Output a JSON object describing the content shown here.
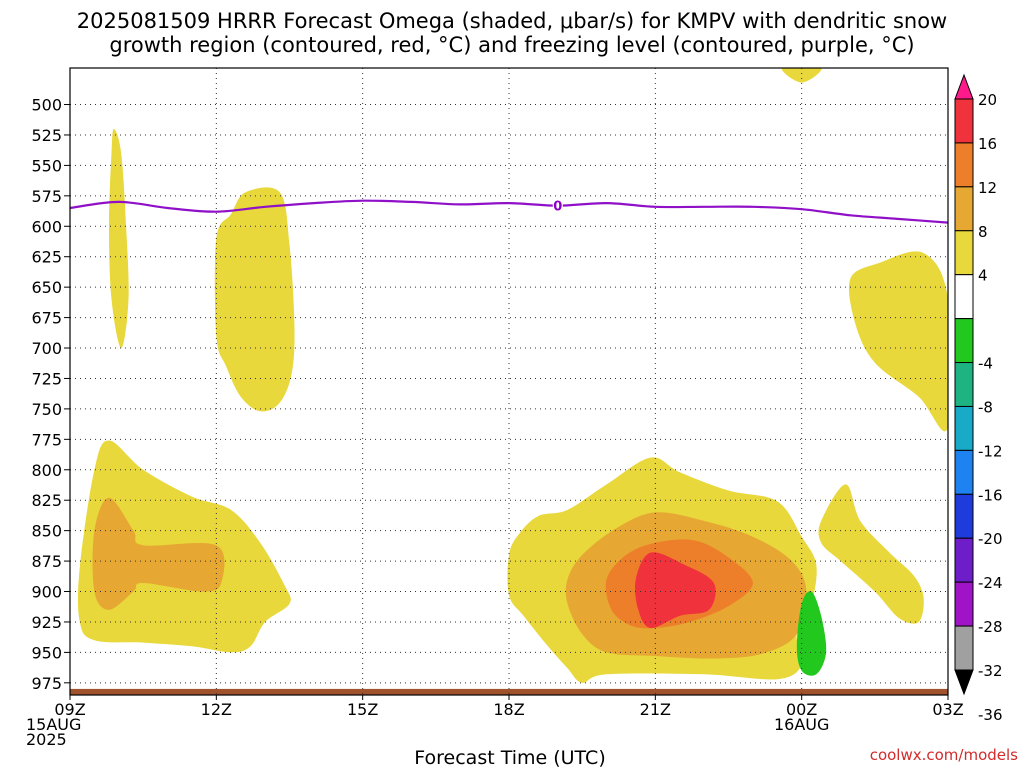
{
  "chart_data": {
    "type": "area",
    "title_lines": [
      "2025081509 HRRR Forecast Omega (shaded, μbar/s) for KMPV with dendritic snow",
      "growth region (contoured, red, °C) and freezing level (contoured, purple, °C)"
    ],
    "xlabel": "Forecast Time (UTC)",
    "credit": "coolwx.com/models",
    "x_range_hours": [
      0,
      18
    ],
    "y_range_mb": [
      470,
      985
    ],
    "y_ticks": [
      500,
      525,
      550,
      575,
      600,
      625,
      650,
      675,
      700,
      725,
      750,
      775,
      800,
      825,
      850,
      875,
      900,
      925,
      950,
      975
    ],
    "x_ticks": [
      {
        "hour": 0,
        "lines": [
          "09Z",
          "15AUG",
          "2025"
        ]
      },
      {
        "hour": 3,
        "lines": [
          "12Z"
        ]
      },
      {
        "hour": 6,
        "lines": [
          "15Z"
        ]
      },
      {
        "hour": 9,
        "lines": [
          "18Z"
        ]
      },
      {
        "hour": 12,
        "lines": [
          "21Z"
        ]
      },
      {
        "hour": 15,
        "lines": [
          "00Z",
          "16AUG"
        ]
      },
      {
        "hour": 18,
        "lines": [
          "03Z"
        ]
      }
    ],
    "colorbar": {
      "labels": [
        "20",
        "16",
        "12",
        "8",
        "4",
        "-4",
        "-8",
        "-12",
        "-16",
        "-20",
        "-24",
        "-28",
        "-32",
        "-36"
      ],
      "colors": [
        "#ff1a8c",
        "#f0323c",
        "#ee7f2a",
        "#e6a832",
        "#e8d83c",
        "#ffffff",
        "#23c81e",
        "#1eb482",
        "#19aac8",
        "#1e82f0",
        "#1e3cdc",
        "#6e1ec8",
        "#a014c8",
        "#a0a0a0",
        "#000000"
      ]
    },
    "freezing_level": {
      "label": "0",
      "color": "#9010c8",
      "hours": [
        0,
        1,
        2,
        3,
        4,
        5,
        6,
        7,
        8,
        9,
        10,
        11,
        12,
        13,
        14,
        15,
        16,
        17,
        18
      ],
      "pressure_mb": [
        585,
        580,
        585,
        588,
        584,
        581,
        579,
        580,
        582,
        581,
        583,
        581,
        584,
        584,
        584,
        586,
        591,
        594,
        597
      ]
    },
    "omega_regions": [
      {
        "level": 4,
        "color": "#e8d83c",
        "points": [
          [
            0.9,
            520
          ],
          [
            1.05,
            540
          ],
          [
            1.15,
            600
          ],
          [
            1.2,
            660
          ],
          [
            1.05,
            700
          ],
          [
            0.85,
            660
          ],
          [
            0.8,
            600
          ],
          [
            0.85,
            540
          ]
        ]
      },
      {
        "level": 4,
        "color": "#e8d83c",
        "points": [
          [
            3.0,
            610
          ],
          [
            3.3,
            590
          ],
          [
            3.6,
            572
          ],
          [
            4.3,
            572
          ],
          [
            4.5,
            615
          ],
          [
            4.6,
            680
          ],
          [
            4.55,
            720
          ],
          [
            4.3,
            745
          ],
          [
            3.9,
            752
          ],
          [
            3.5,
            740
          ],
          [
            3.2,
            715
          ],
          [
            3.0,
            690
          ]
        ]
      },
      {
        "level": 4,
        "color": "#e8d83c",
        "points": [
          [
            0.2,
            880
          ],
          [
            0.5,
            800
          ],
          [
            0.8,
            776
          ],
          [
            1.5,
            800
          ],
          [
            2.5,
            822
          ],
          [
            3.3,
            833
          ],
          [
            3.9,
            860
          ],
          [
            4.4,
            895
          ],
          [
            4.5,
            910
          ],
          [
            4.0,
            925
          ],
          [
            3.7,
            945
          ],
          [
            3.3,
            950
          ],
          [
            2.5,
            945
          ],
          [
            1.5,
            942
          ],
          [
            0.5,
            940
          ],
          [
            0.2,
            925
          ]
        ]
      },
      {
        "level": 8,
        "color": "#e6a832",
        "points": [
          [
            0.5,
            850
          ],
          [
            0.8,
            823
          ],
          [
            1.3,
            850
          ],
          [
            1.5,
            862
          ],
          [
            3.0,
            862
          ],
          [
            3.1,
            893
          ],
          [
            2.7,
            900
          ],
          [
            1.5,
            893
          ],
          [
            1.3,
            900
          ],
          [
            0.8,
            915
          ],
          [
            0.5,
            900
          ]
        ]
      },
      {
        "level": 4,
        "color": "#e8d83c",
        "points": [
          [
            9.0,
            870
          ],
          [
            9.2,
            853
          ],
          [
            9.6,
            838
          ],
          [
            10.2,
            833
          ],
          [
            11.0,
            812
          ],
          [
            11.9,
            790
          ],
          [
            12.5,
            802
          ],
          [
            13.5,
            817
          ],
          [
            14.5,
            826
          ],
          [
            15.0,
            855
          ],
          [
            15.3,
            878
          ],
          [
            15.2,
            910
          ],
          [
            14.9,
            935
          ],
          [
            15.0,
            960
          ],
          [
            14.5,
            972
          ],
          [
            13.0,
            968
          ],
          [
            11.0,
            968
          ],
          [
            10.5,
            975
          ],
          [
            10.2,
            963
          ],
          [
            9.8,
            945
          ],
          [
            9.3,
            920
          ],
          [
            9.0,
            903
          ]
        ]
      },
      {
        "level": 8,
        "color": "#e6a832",
        "points": [
          [
            10.2,
            890
          ],
          [
            10.5,
            870
          ],
          [
            11.2,
            848
          ],
          [
            12.0,
            835
          ],
          [
            13.0,
            842
          ],
          [
            14.0,
            855
          ],
          [
            14.8,
            875
          ],
          [
            15.1,
            900
          ],
          [
            14.9,
            935
          ],
          [
            14.2,
            951
          ],
          [
            13.2,
            955
          ],
          [
            12.0,
            953
          ],
          [
            11.0,
            950
          ],
          [
            10.5,
            935
          ],
          [
            10.2,
            910
          ]
        ]
      },
      {
        "level": 12,
        "color": "#ee7f2a",
        "points": [
          [
            11.0,
            890
          ],
          [
            11.4,
            870
          ],
          [
            12.0,
            860
          ],
          [
            12.8,
            858
          ],
          [
            13.5,
            872
          ],
          [
            14.0,
            893
          ],
          [
            13.5,
            912
          ],
          [
            12.7,
            925
          ],
          [
            12.0,
            930
          ],
          [
            11.5,
            928
          ],
          [
            11.1,
            915
          ]
        ]
      },
      {
        "level": 16,
        "color": "#f0323c",
        "points": [
          [
            11.6,
            890
          ],
          [
            11.9,
            868
          ],
          [
            12.6,
            878
          ],
          [
            13.2,
            893
          ],
          [
            13.1,
            915
          ],
          [
            12.5,
            920
          ],
          [
            11.9,
            930
          ],
          [
            11.65,
            915
          ]
        ]
      },
      {
        "level": -4,
        "color": "#23c81e",
        "points": [
          [
            15.0,
            910
          ],
          [
            15.2,
            900
          ],
          [
            15.4,
            920
          ],
          [
            15.5,
            950
          ],
          [
            15.3,
            968
          ],
          [
            15.0,
            965
          ],
          [
            14.9,
            945
          ]
        ]
      },
      {
        "level": 4,
        "color": "#e8d83c",
        "points": [
          [
            15.4,
            842
          ],
          [
            15.9,
            812
          ],
          [
            16.2,
            842
          ],
          [
            16.8,
            868
          ],
          [
            17.3,
            887
          ],
          [
            17.5,
            905
          ],
          [
            17.4,
            925
          ],
          [
            17.0,
            922
          ],
          [
            16.5,
            900
          ],
          [
            15.8,
            875
          ],
          [
            15.4,
            860
          ]
        ]
      },
      {
        "level": 4,
        "color": "#e8d83c",
        "points": [
          [
            16.0,
            643
          ],
          [
            16.6,
            630
          ],
          [
            17.5,
            622
          ],
          [
            18.0,
            660
          ],
          [
            18.0,
            765
          ],
          [
            17.4,
            740
          ],
          [
            16.5,
            712
          ],
          [
            16.1,
            680
          ]
        ]
      },
      {
        "level": 4,
        "color": "#e8d83c",
        "points": [
          [
            14.6,
            470
          ],
          [
            15.4,
            470
          ],
          [
            15.0,
            482
          ]
        ]
      }
    ],
    "surface_band": {
      "color": "#a0522d",
      "pressure_mb": [
        980,
        985
      ]
    }
  }
}
